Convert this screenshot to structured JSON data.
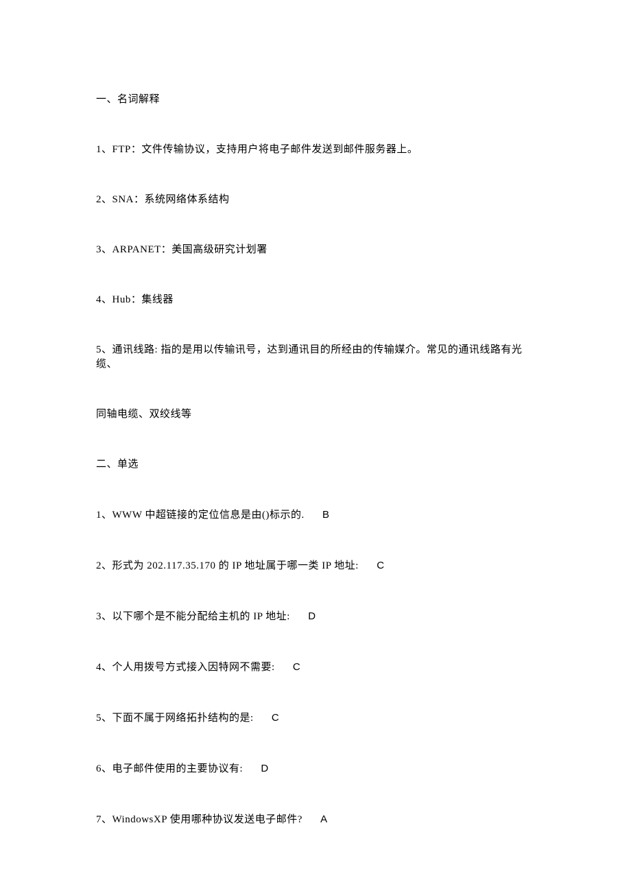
{
  "section1": {
    "title": "一、名词解释",
    "items": [
      "1、FTP：文件传输协议，支持用户将电子邮件发送到邮件服务器上。",
      "2、SNA：系统网络体系结构",
      "3、ARPANET：美国高级研究计划署",
      "4、Hub：集线器",
      "5、通讯线路: 指的是用以传输讯号，达到通讯目的所经由的传输媒介。常见的通讯线路有光缆、",
      "同轴电缆、双绞线等"
    ]
  },
  "section2": {
    "title": "二、单选",
    "items": [
      {
        "q": "1、WWW 中超链接的定位信息是由()标示的.",
        "a": "B"
      },
      {
        "q": "2、形式为 202.117.35.170 的 IP 地址属于哪一类 IP 地址:",
        "a": "C"
      },
      {
        "q": "3、以下哪个是不能分配给主机的 IP 地址:",
        "a": "D"
      },
      {
        "q": "4、个人用拨号方式接入因特网不需要:",
        "a": "C"
      },
      {
        "q": "5、下面不属于网络拓扑结构的是:",
        "a": "C"
      },
      {
        "q": "6、电子邮件使用的主要协议有:",
        "a": "D"
      },
      {
        "q": "7、WindowsXP 使用哪种协议发送电子邮件?",
        "a": "A"
      }
    ]
  }
}
